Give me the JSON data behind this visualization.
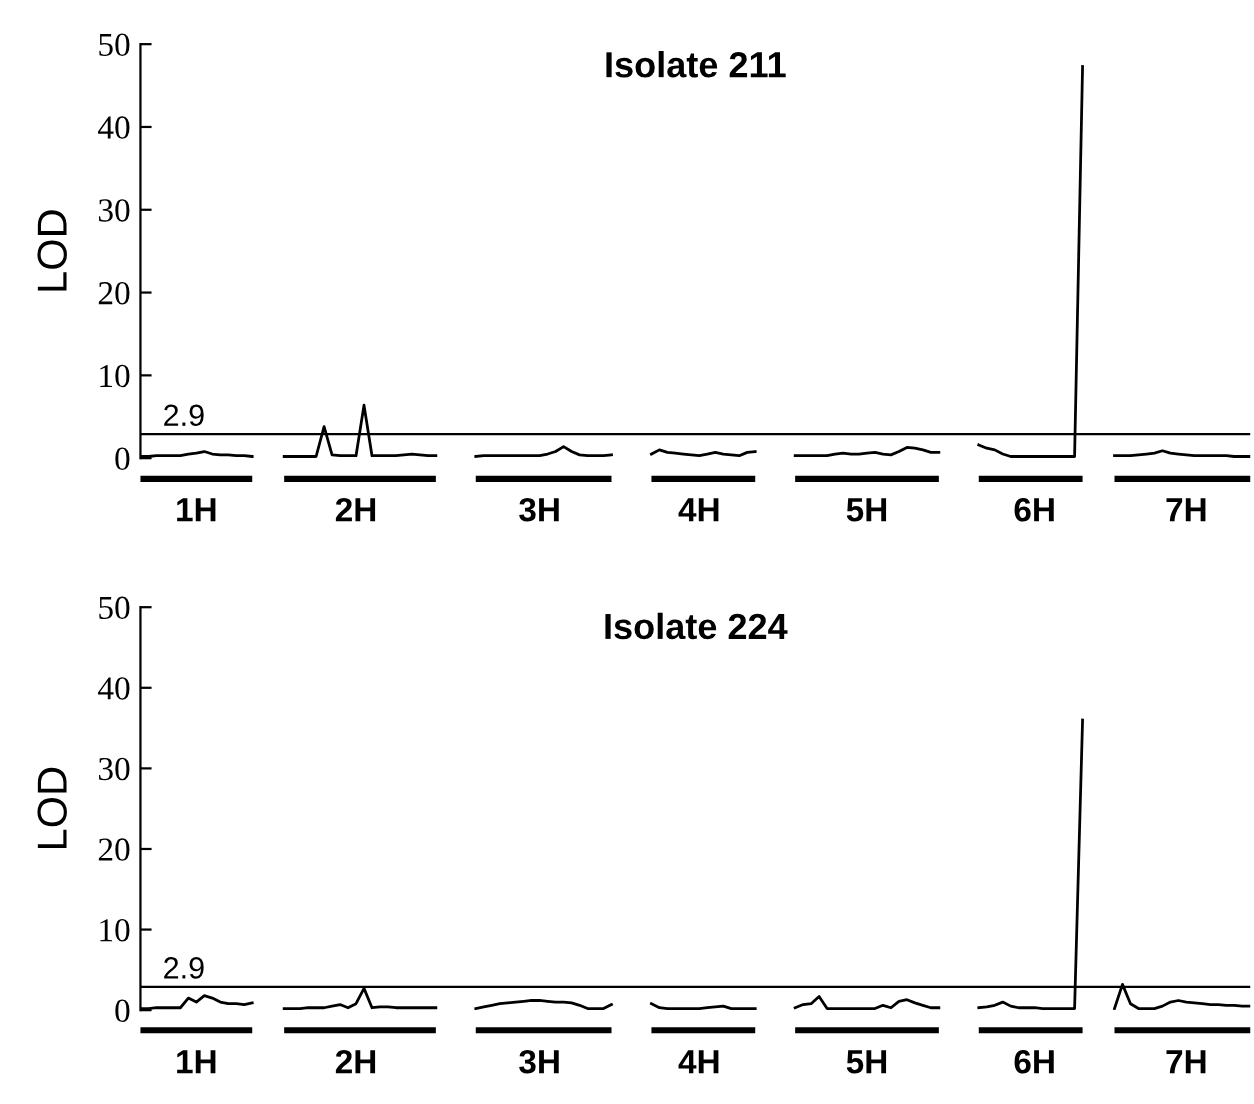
{
  "chart_data": [
    {
      "type": "line",
      "title": "Isolate 211",
      "ylabel": "LOD",
      "ylim": [
        0,
        50
      ],
      "yticks": [
        0,
        10,
        20,
        30,
        40,
        50
      ],
      "categories": [
        null,
        null,
        null,
        null,
        null,
        null,
        null,
        "1H",
        null,
        null,
        null,
        null,
        null,
        null,
        null,
        null,
        null,
        null,
        null,
        null,
        null,
        null,
        null,
        null,
        null,
        null,
        null,
        "2H",
        null,
        null,
        null,
        null,
        null,
        null,
        null,
        null,
        null,
        null,
        null,
        null,
        null,
        null,
        null,
        null,
        null,
        null,
        null,
        null,
        null,
        null,
        "3H",
        null,
        null,
        null,
        null,
        null,
        null,
        null,
        null,
        null,
        null,
        null,
        null,
        null,
        null,
        null,
        null,
        null,
        null,
        null,
        "4H",
        null,
        null,
        null,
        null,
        null,
        null,
        null,
        null,
        null,
        null,
        null,
        null,
        null,
        null,
        null,
        null,
        null,
        null,
        null,
        null,
        "5H",
        null,
        null,
        null,
        null,
        null,
        null,
        null,
        null,
        null,
        null,
        null,
        null,
        null,
        null,
        null,
        null,
        null,
        null,
        null,
        null,
        "6H",
        null,
        null,
        null,
        null,
        null,
        null,
        null,
        null,
        null,
        null,
        null,
        null,
        null,
        null,
        null,
        null,
        null,
        null,
        "7H",
        null,
        null,
        null,
        null,
        null,
        null,
        null,
        null
      ],
      "grid": false,
      "ref_lines": [
        {
          "axis": "y",
          "value": 2.9,
          "label": "2.9",
          "color": "#000000"
        }
      ],
      "series": [
        {
          "color": "#000000",
          "values": [
            0.2,
            0.2,
            0.3,
            0.3,
            0.3,
            0.3,
            0.5,
            0.6,
            0.8,
            0.5,
            0.4,
            0.4,
            0.3,
            0.3,
            0.2,
            null,
            null,
            null,
            0.2,
            0.2,
            0.2,
            0.2,
            0.2,
            3.8,
            0.4,
            0.3,
            0.3,
            0.3,
            6.4,
            0.3,
            0.3,
            0.3,
            0.3,
            0.4,
            0.5,
            0.4,
            0.3,
            0.3,
            null,
            null,
            null,
            null,
            0.2,
            0.3,
            0.3,
            0.3,
            0.3,
            0.3,
            0.3,
            0.3,
            0.3,
            0.5,
            0.8,
            1.4,
            0.8,
            0.4,
            0.3,
            0.3,
            0.3,
            0.4,
            null,
            null,
            null,
            null,
            0.5,
            1.0,
            0.7,
            0.6,
            0.5,
            0.4,
            0.3,
            0.5,
            0.7,
            0.5,
            0.4,
            0.3,
            0.7,
            0.8,
            null,
            null,
            null,
            null,
            0.3,
            0.3,
            0.3,
            0.3,
            0.3,
            0.5,
            0.6,
            0.5,
            0.5,
            0.6,
            0.7,
            0.5,
            0.4,
            0.8,
            1.3,
            1.2,
            1.0,
            0.7,
            0.7,
            null,
            null,
            null,
            null,
            1.6,
            1.2,
            1.0,
            0.5,
            0.2,
            0.2,
            0.2,
            0.2,
            0.2,
            0.2,
            0.2,
            0.2,
            0.2,
            47.3,
            null,
            null,
            null,
            0.3,
            0.3,
            0.3,
            0.4,
            0.5,
            0.6,
            0.9,
            0.6,
            0.5,
            0.4,
            0.3,
            0.3,
            0.3,
            0.3,
            0.3,
            0.2,
            0.2,
            0.2
          ]
        }
      ]
    },
    {
      "type": "line",
      "title": "Isolate 224",
      "ylabel": "LOD",
      "ylim": [
        0,
        50
      ],
      "yticks": [
        0,
        10,
        20,
        30,
        40,
        50
      ],
      "categories": [
        null,
        null,
        null,
        null,
        null,
        null,
        null,
        "1H",
        null,
        null,
        null,
        null,
        null,
        null,
        null,
        null,
        null,
        null,
        null,
        null,
        null,
        null,
        null,
        null,
        null,
        null,
        null,
        "2H",
        null,
        null,
        null,
        null,
        null,
        null,
        null,
        null,
        null,
        null,
        null,
        null,
        null,
        null,
        null,
        null,
        null,
        null,
        null,
        null,
        null,
        null,
        "3H",
        null,
        null,
        null,
        null,
        null,
        null,
        null,
        null,
        null,
        null,
        null,
        null,
        null,
        null,
        null,
        null,
        null,
        null,
        null,
        "4H",
        null,
        null,
        null,
        null,
        null,
        null,
        null,
        null,
        null,
        null,
        null,
        null,
        null,
        null,
        null,
        null,
        null,
        null,
        null,
        null,
        "5H",
        null,
        null,
        null,
        null,
        null,
        null,
        null,
        null,
        null,
        null,
        null,
        null,
        null,
        null,
        null,
        null,
        null,
        null,
        null,
        null,
        "6H",
        null,
        null,
        null,
        null,
        null,
        null,
        null,
        null,
        null,
        null,
        null,
        null,
        null,
        null,
        null,
        null,
        null,
        null,
        "7H",
        null,
        null,
        null,
        null,
        null,
        null,
        null,
        null
      ],
      "grid": false,
      "ref_lines": [
        {
          "axis": "y",
          "value": 2.9,
          "label": "2.9",
          "color": "#000000"
        }
      ],
      "series": [
        {
          "color": "#000000",
          "values": [
            0.2,
            0.2,
            0.3,
            0.3,
            0.3,
            0.3,
            1.5,
            1.0,
            1.8,
            1.5,
            1.0,
            0.8,
            0.8,
            0.7,
            0.9,
            null,
            null,
            null,
            0.2,
            0.2,
            0.2,
            0.3,
            0.3,
            0.3,
            0.5,
            0.7,
            0.3,
            0.8,
            2.7,
            0.3,
            0.4,
            0.4,
            0.3,
            0.3,
            0.3,
            0.3,
            0.3,
            0.3,
            null,
            null,
            null,
            null,
            0.2,
            0.4,
            0.6,
            0.8,
            0.9,
            1.0,
            1.1,
            1.2,
            1.2,
            1.1,
            1.0,
            1.0,
            0.9,
            0.6,
            0.2,
            0.2,
            0.2,
            0.7,
            null,
            null,
            null,
            null,
            0.8,
            0.3,
            0.2,
            0.2,
            0.2,
            0.2,
            0.2,
            0.3,
            0.4,
            0.5,
            0.2,
            0.2,
            0.2,
            0.2,
            null,
            null,
            null,
            null,
            0.3,
            0.7,
            0.8,
            1.7,
            0.2,
            0.2,
            0.2,
            0.2,
            0.2,
            0.2,
            0.2,
            0.6,
            0.3,
            1.1,
            1.3,
            0.9,
            0.6,
            0.3,
            0.3,
            null,
            null,
            null,
            null,
            0.3,
            0.4,
            0.6,
            1.0,
            0.5,
            0.3,
            0.3,
            0.3,
            0.2,
            0.2,
            0.2,
            0.2,
            0.2,
            36,
            null,
            null,
            null,
            0.2,
            3.2,
            0.8,
            0.2,
            0.2,
            0.2,
            0.5,
            1.0,
            1.2,
            1.0,
            0.9,
            0.8,
            0.7,
            0.7,
            0.6,
            0.6,
            0.5,
            0.5
          ]
        }
      ]
    }
  ]
}
